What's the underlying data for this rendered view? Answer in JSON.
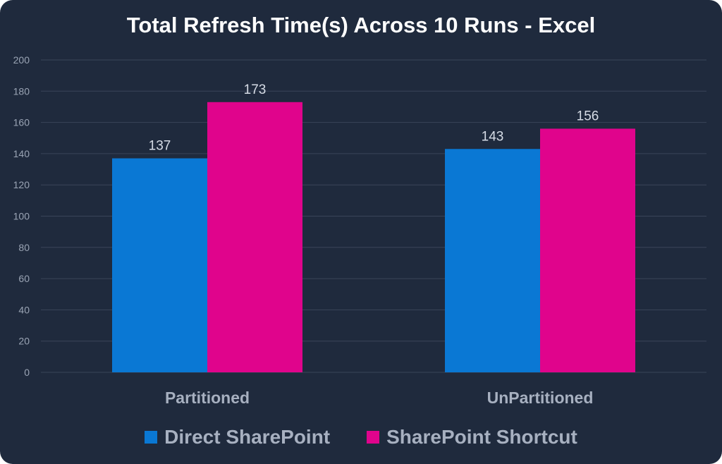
{
  "chart_data": {
    "type": "bar",
    "title": "Total Refresh Time(s) Across 10 Runs - Excel",
    "categories": [
      "Partitioned",
      "UnPartitioned"
    ],
    "series": [
      {
        "name": "Direct SharePoint",
        "values": [
          137,
          143
        ],
        "color": "#0a78d4"
      },
      {
        "name": "SharePoint Shortcut",
        "values": [
          173,
          156
        ],
        "color": "#e0048c"
      }
    ],
    "ylim": [
      0,
      200
    ],
    "yticks": [
      0,
      20,
      40,
      60,
      80,
      100,
      120,
      140,
      160,
      180,
      200
    ],
    "grid": true,
    "legend": "bottom",
    "data_labels": true
  }
}
